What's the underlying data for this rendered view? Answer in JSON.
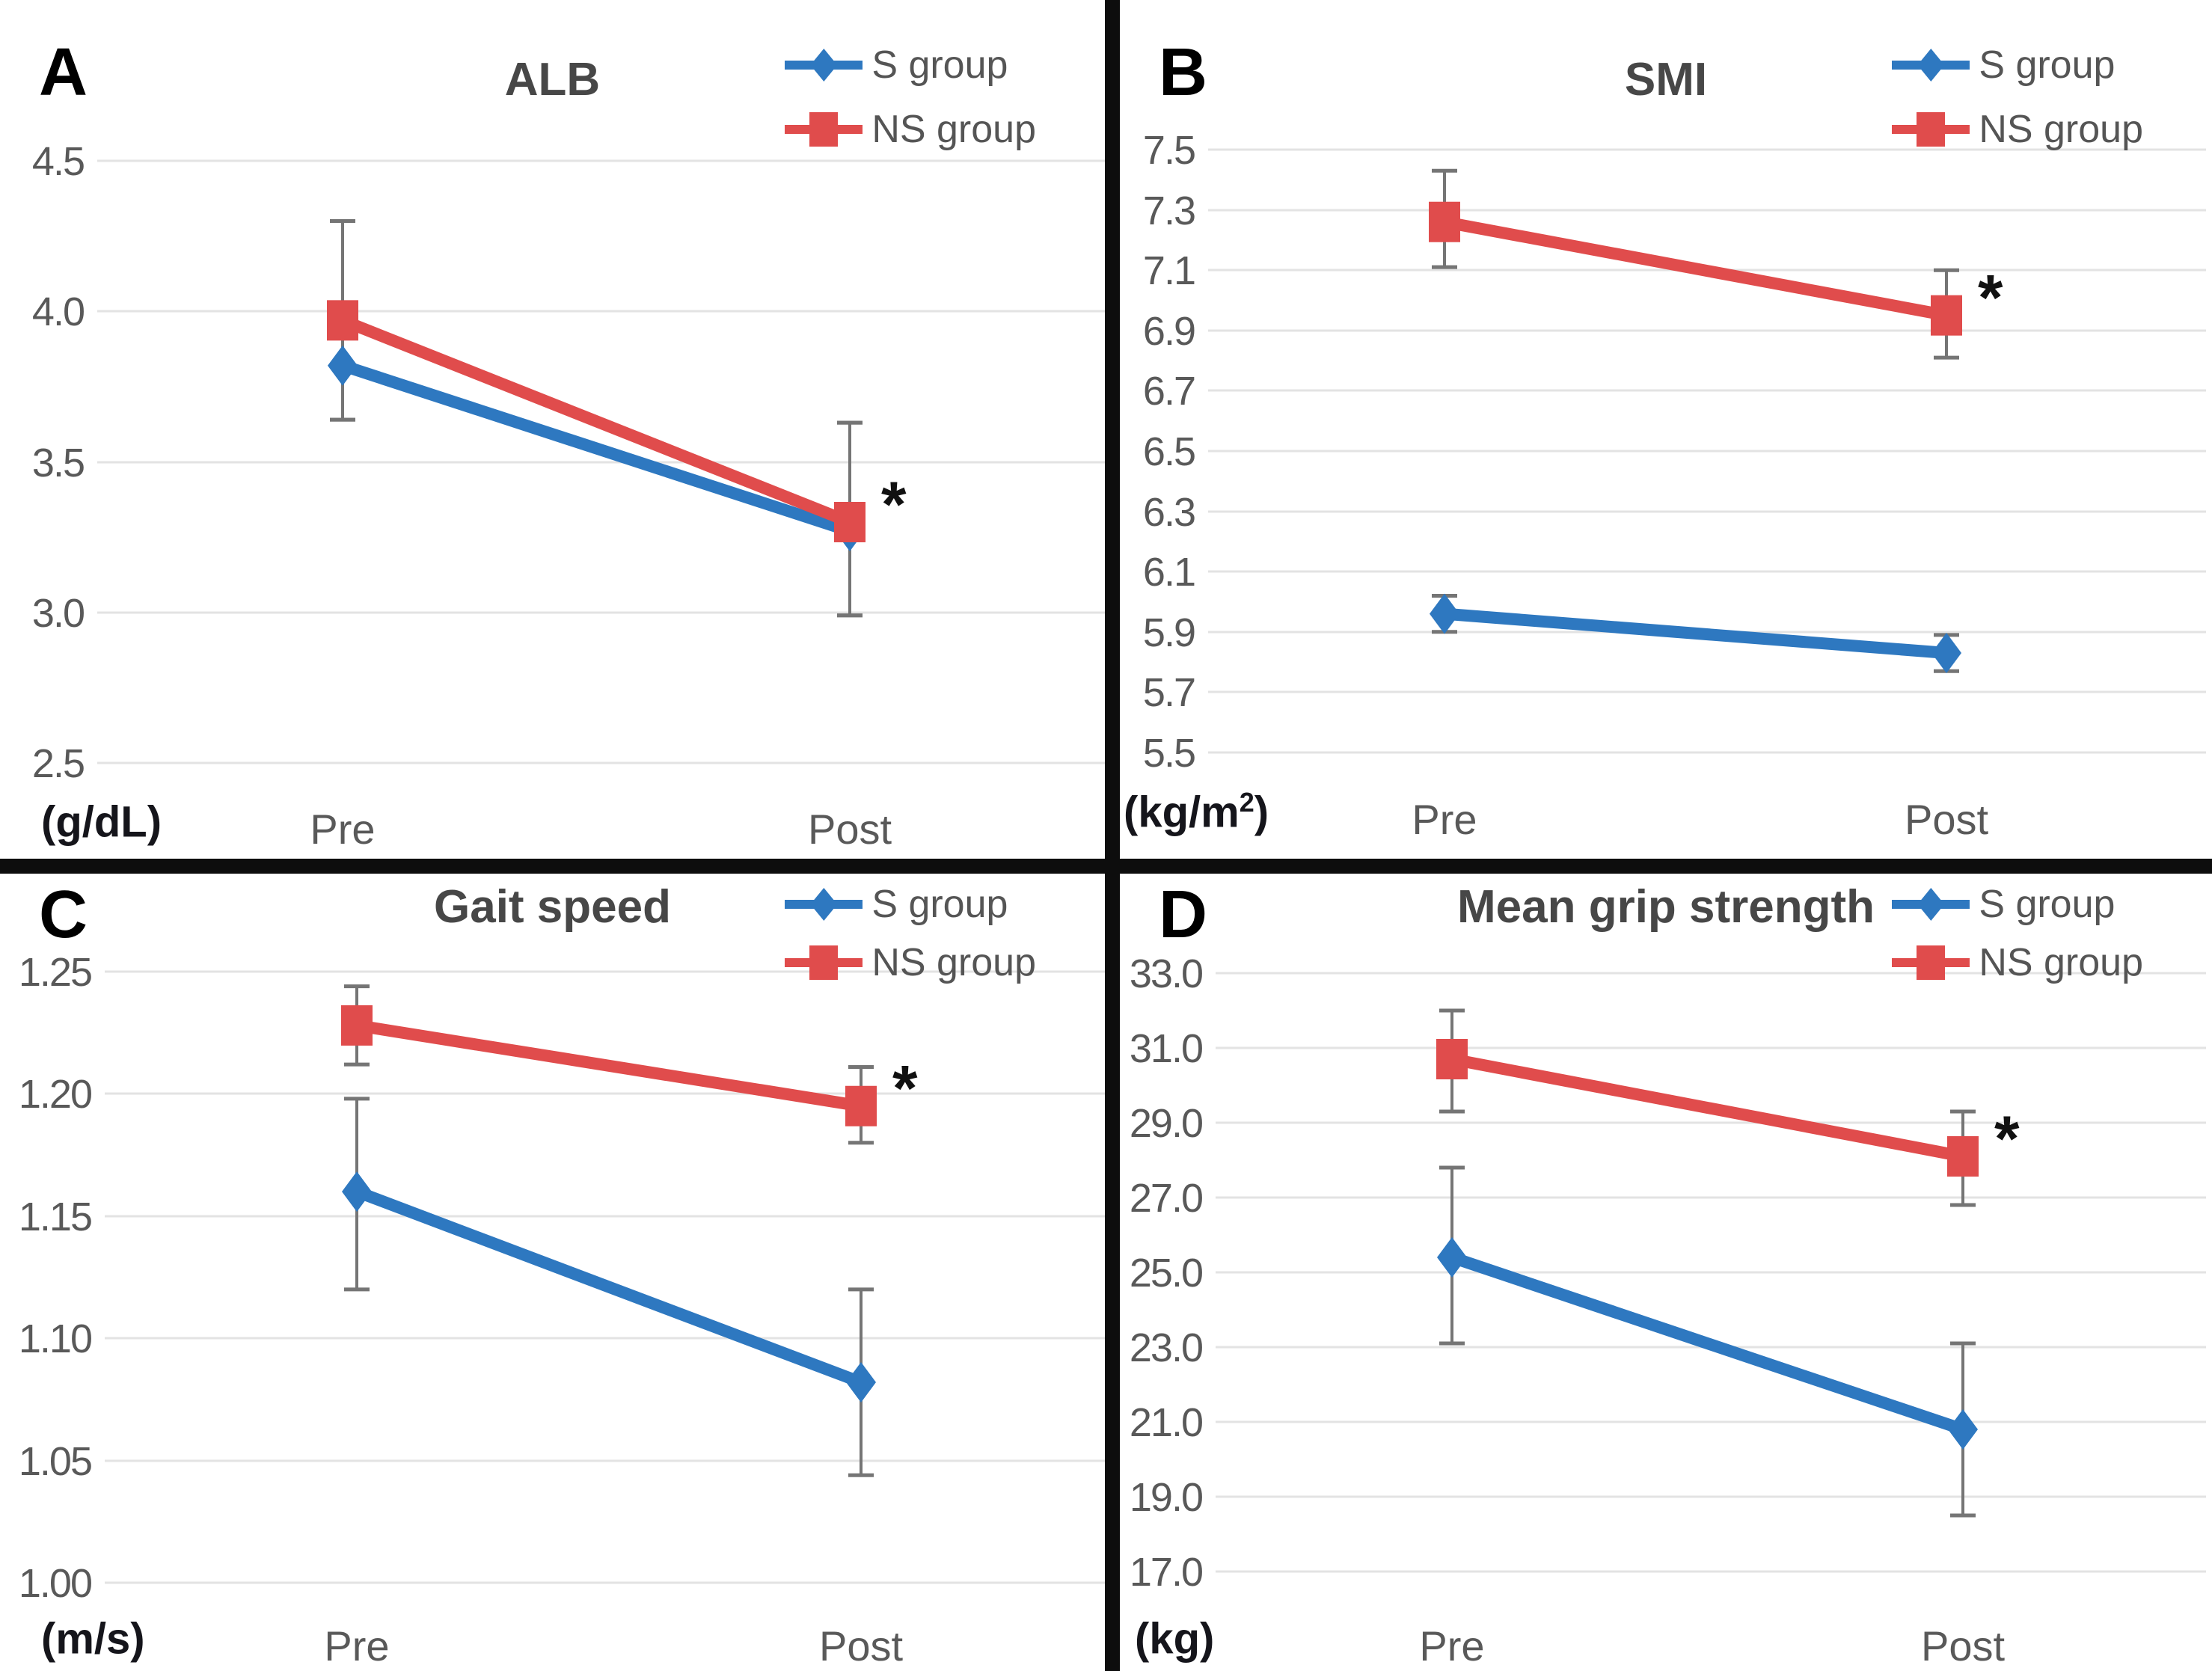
{
  "figure": {
    "background": "#ffffff",
    "divider_color": "#0d0d0d",
    "colors": {
      "s_group": "#2e78c0",
      "ns_group": "#e04c4c",
      "title_text": "#474747",
      "tick_text": "#595959",
      "grid": "#e3e3e3",
      "error_bar": "#757575",
      "star": "#111111"
    },
    "legend": {
      "s_label": "S group",
      "ns_label": "NS group"
    }
  },
  "chart_data": [
    {
      "type": "line",
      "panel_letter": "A",
      "title": "ALB",
      "ylabel": "(g/dL)",
      "unit_prefix": "(g/dL)",
      "unit_sup": "",
      "unit_suffix": "",
      "categories": [
        "Pre",
        "Post"
      ],
      "y_ticks": [
        4.5,
        4.0,
        3.5,
        3.0,
        2.5
      ],
      "y_tick_labels": [
        "4.5",
        "4.0",
        "3.5",
        "3.0",
        "2.5"
      ],
      "ylim": [
        2.5,
        4.5
      ],
      "grid": true,
      "legend_position": "top-right",
      "series": [
        {
          "name": "S group",
          "marker": "diamond",
          "color_key": "s_group",
          "values": [
            3.82,
            3.27
          ],
          "err_low": [
            3.64,
            2.99
          ],
          "err_high": [
            4.0,
            3.63
          ]
        },
        {
          "name": "NS group",
          "marker": "square",
          "color_key": "ns_group",
          "values": [
            3.97,
            3.3
          ],
          "err_low": [
            3.64,
            2.99
          ],
          "err_high": [
            4.3,
            3.63
          ]
        }
      ],
      "significance": {
        "label": "*",
        "series": "NS group",
        "category": "Post"
      }
    },
    {
      "type": "line",
      "panel_letter": "B",
      "title": "SMI",
      "ylabel": "(kg/m2)",
      "unit_prefix": "(kg/m",
      "unit_sup": "2",
      "unit_suffix": ")",
      "categories": [
        "Pre",
        "Post"
      ],
      "y_ticks": [
        7.5,
        7.3,
        7.1,
        6.9,
        6.7,
        6.5,
        6.3,
        6.1,
        5.9,
        5.7,
        5.5
      ],
      "y_tick_labels": [
        "7.5",
        "7.3",
        "7.1",
        "6.9",
        "6.7",
        "6.5",
        "6.3",
        "6.1",
        "5.9",
        "5.7",
        "5.5"
      ],
      "ylim": [
        5.5,
        7.5
      ],
      "grid": true,
      "legend_position": "top-right",
      "series": [
        {
          "name": "S group",
          "marker": "diamond",
          "color_key": "s_group",
          "values": [
            5.96,
            5.83
          ],
          "err_low": [
            5.9,
            5.77
          ],
          "err_high": [
            6.02,
            5.89
          ]
        },
        {
          "name": "NS group",
          "marker": "square",
          "color_key": "ns_group",
          "values": [
            7.26,
            6.95
          ],
          "err_low": [
            7.11,
            6.81
          ],
          "err_high": [
            7.43,
            7.1
          ]
        }
      ],
      "significance": {
        "label": "*",
        "series": "NS group",
        "category": "Post"
      }
    },
    {
      "type": "line",
      "panel_letter": "C",
      "title": "Gait speed",
      "ylabel": "(m/s)",
      "unit_prefix": "(m/s)",
      "unit_sup": "",
      "unit_suffix": "",
      "categories": [
        "Pre",
        "Post"
      ],
      "y_ticks": [
        1.25,
        1.2,
        1.15,
        1.1,
        1.05,
        1.0
      ],
      "y_tick_labels": [
        "1.25",
        "1.20",
        "1.15",
        "1.10",
        "1.05",
        "1.00"
      ],
      "ylim": [
        1.0,
        1.25
      ],
      "grid": true,
      "legend_position": "top-right",
      "series": [
        {
          "name": "S group",
          "marker": "diamond",
          "color_key": "s_group",
          "values": [
            1.16,
            1.082
          ],
          "err_low": [
            1.12,
            1.044
          ],
          "err_high": [
            1.198,
            1.12
          ]
        },
        {
          "name": "NS group",
          "marker": "square",
          "color_key": "ns_group",
          "values": [
            1.228,
            1.195
          ],
          "err_low": [
            1.212,
            1.18
          ],
          "err_high": [
            1.244,
            1.211
          ]
        }
      ],
      "significance": {
        "label": "*",
        "series": "NS group",
        "category": "Post"
      }
    },
    {
      "type": "line",
      "panel_letter": "D",
      "title": "Mean grip strength",
      "ylabel": "(kg)",
      "unit_prefix": "(kg)",
      "unit_sup": "",
      "unit_suffix": "",
      "categories": [
        "Pre",
        "Post"
      ],
      "y_ticks": [
        33.0,
        31.0,
        29.0,
        27.0,
        25.0,
        23.0,
        21.0,
        19.0,
        17.0
      ],
      "y_tick_labels": [
        "33.0",
        "31.0",
        "29.0",
        "27.0",
        "25.0",
        "23.0",
        "21.0",
        "19.0",
        "17.0"
      ],
      "ylim": [
        17.0,
        33.0
      ],
      "grid": true,
      "legend_position": "top-right",
      "series": [
        {
          "name": "S group",
          "marker": "diamond",
          "color_key": "s_group",
          "values": [
            25.4,
            20.8
          ],
          "err_low": [
            23.1,
            18.5
          ],
          "err_high": [
            27.8,
            23.1
          ]
        },
        {
          "name": "NS group",
          "marker": "square",
          "color_key": "ns_group",
          "values": [
            30.7,
            28.1
          ],
          "err_low": [
            29.3,
            26.8
          ],
          "err_high": [
            32.0,
            29.3
          ]
        }
      ],
      "significance": {
        "label": "*",
        "series": "NS group",
        "category": "Post"
      }
    }
  ]
}
